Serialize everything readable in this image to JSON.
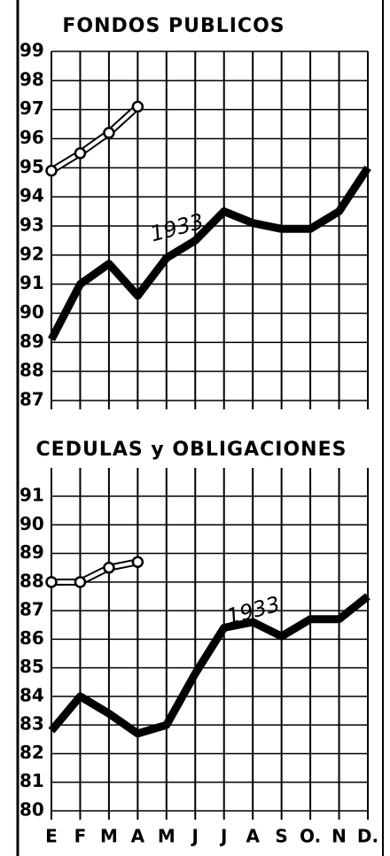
{
  "chart_data": [
    {
      "type": "line",
      "title": "FONDOS PUBLICOS",
      "ylim": [
        87,
        99
      ],
      "yticks": [
        87,
        88,
        89,
        90,
        91,
        92,
        93,
        94,
        95,
        96,
        97,
        98,
        99
      ],
      "grid": true,
      "series": [
        {
          "name": "1933",
          "color": "#000000",
          "values": [
            89.1,
            91.0,
            91.7,
            90.6,
            91.9,
            92.5,
            93.5,
            93.1,
            92.9,
            92.9,
            93.5,
            95.0
          ]
        },
        {
          "color": "#000000",
          "values": [
            94.9,
            95.5,
            96.2,
            97.1,
            null,
            null,
            null,
            null,
            null,
            null,
            null,
            null
          ]
        }
      ]
    },
    {
      "type": "line",
      "title": "CEDULAS y OBLIGACIONES",
      "categories": [
        "E",
        "F",
        "M",
        "A",
        "M",
        "J",
        "J",
        "A",
        "S",
        "O.",
        "N",
        "D."
      ],
      "ylim": [
        80,
        91
      ],
      "yticks": [
        80,
        81,
        82,
        83,
        84,
        85,
        86,
        87,
        88,
        89,
        90,
        91
      ],
      "grid": true,
      "series": [
        {
          "name": "1933",
          "color": "#000000",
          "values": [
            82.8,
            84.0,
            83.4,
            82.7,
            83.0,
            84.8,
            86.4,
            86.6,
            86.1,
            86.7,
            86.7,
            87.5
          ]
        },
        {
          "color": "#000000",
          "values": [
            88.0,
            88.0,
            88.5,
            88.7,
            null,
            null,
            null,
            null,
            null,
            null,
            null,
            null
          ]
        }
      ]
    }
  ]
}
